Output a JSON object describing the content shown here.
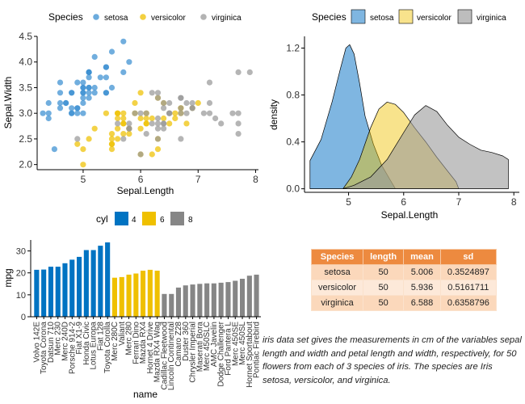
{
  "colors": {
    "setosa": "#3a8fd1",
    "versicolor": "#efc000",
    "virginica": "#999999",
    "cyl4": "#0073c2",
    "cyl6": "#efc000",
    "cyl8": "#868686",
    "table_header": "#ed8a3f"
  },
  "chart_data": [
    {
      "type": "scatter",
      "xlabel": "Sepal.Length",
      "ylabel": "Sepal.Width",
      "xlim": [
        4.2,
        8.05
      ],
      "ylim": [
        1.9,
        4.5
      ],
      "xticks": [
        5,
        6,
        7,
        8
      ],
      "yticks": [
        2.0,
        2.5,
        3.0,
        3.5,
        4.0,
        4.5
      ],
      "legend_title": "Species",
      "legend_position": "top",
      "series": [
        {
          "name": "setosa",
          "color": "#3a8fd1",
          "points": [
            [
              5.1,
              3.5
            ],
            [
              4.9,
              3.0
            ],
            [
              4.7,
              3.2
            ],
            [
              4.6,
              3.1
            ],
            [
              5.0,
              3.6
            ],
            [
              5.4,
              3.9
            ],
            [
              4.6,
              3.4
            ],
            [
              5.0,
              3.4
            ],
            [
              4.4,
              2.9
            ],
            [
              4.9,
              3.1
            ],
            [
              5.4,
              3.7
            ],
            [
              4.8,
              3.4
            ],
            [
              4.8,
              3.0
            ],
            [
              4.3,
              3.0
            ],
            [
              5.8,
              4.0
            ],
            [
              5.7,
              4.4
            ],
            [
              5.4,
              3.9
            ],
            [
              5.1,
              3.5
            ],
            [
              5.7,
              3.8
            ],
            [
              5.1,
              3.8
            ],
            [
              5.4,
              3.4
            ],
            [
              5.1,
              3.7
            ],
            [
              4.6,
              3.6
            ],
            [
              5.1,
              3.3
            ],
            [
              4.8,
              3.4
            ],
            [
              5.0,
              3.0
            ],
            [
              5.0,
              3.4
            ],
            [
              5.2,
              3.5
            ],
            [
              5.2,
              3.4
            ],
            [
              4.7,
              3.2
            ],
            [
              4.8,
              3.1
            ],
            [
              5.4,
              3.4
            ],
            [
              5.2,
              4.1
            ],
            [
              5.5,
              4.2
            ],
            [
              4.9,
              3.1
            ],
            [
              5.0,
              3.2
            ],
            [
              5.5,
              3.5
            ],
            [
              4.9,
              3.6
            ],
            [
              4.4,
              3.0
            ],
            [
              5.1,
              3.4
            ],
            [
              5.0,
              3.5
            ],
            [
              4.5,
              2.3
            ],
            [
              4.4,
              3.2
            ],
            [
              5.0,
              3.5
            ],
            [
              5.1,
              3.8
            ],
            [
              4.8,
              3.0
            ],
            [
              5.1,
              3.8
            ],
            [
              4.6,
              3.2
            ],
            [
              5.3,
              3.7
            ],
            [
              5.0,
              3.3
            ]
          ]
        },
        {
          "name": "versicolor",
          "color": "#efc000",
          "points": [
            [
              7.0,
              3.2
            ],
            [
              6.4,
              3.2
            ],
            [
              6.9,
              3.1
            ],
            [
              5.5,
              2.3
            ],
            [
              6.5,
              2.8
            ],
            [
              5.7,
              2.8
            ],
            [
              6.3,
              3.3
            ],
            [
              4.9,
              2.4
            ],
            [
              6.6,
              2.9
            ],
            [
              5.2,
              2.7
            ],
            [
              5.0,
              2.0
            ],
            [
              5.9,
              3.0
            ],
            [
              6.0,
              2.2
            ],
            [
              6.1,
              2.9
            ],
            [
              5.6,
              2.9
            ],
            [
              6.7,
              3.1
            ],
            [
              5.6,
              3.0
            ],
            [
              5.8,
              2.7
            ],
            [
              6.2,
              2.2
            ],
            [
              5.6,
              2.5
            ],
            [
              5.9,
              3.2
            ],
            [
              6.1,
              2.8
            ],
            [
              6.3,
              2.5
            ],
            [
              6.1,
              2.8
            ],
            [
              6.4,
              2.9
            ],
            [
              6.6,
              3.0
            ],
            [
              6.8,
              2.8
            ],
            [
              6.7,
              3.0
            ],
            [
              6.0,
              2.9
            ],
            [
              5.7,
              2.6
            ],
            [
              5.5,
              2.4
            ],
            [
              5.5,
              2.4
            ],
            [
              5.8,
              2.7
            ],
            [
              6.0,
              2.7
            ],
            [
              5.4,
              3.0
            ],
            [
              6.0,
              3.4
            ],
            [
              6.7,
              3.1
            ],
            [
              6.3,
              2.3
            ],
            [
              5.6,
              3.0
            ],
            [
              5.5,
              2.5
            ],
            [
              5.5,
              2.6
            ],
            [
              6.1,
              3.0
            ],
            [
              5.8,
              2.6
            ],
            [
              5.0,
              2.3
            ],
            [
              5.6,
              2.7
            ],
            [
              5.7,
              3.0
            ],
            [
              5.7,
              2.9
            ],
            [
              6.2,
              2.9
            ],
            [
              5.1,
              2.5
            ],
            [
              5.7,
              2.8
            ]
          ]
        },
        {
          "name": "virginica",
          "color": "#999999",
          "points": [
            [
              6.3,
              3.3
            ],
            [
              5.8,
              2.7
            ],
            [
              7.1,
              3.0
            ],
            [
              6.3,
              2.9
            ],
            [
              6.5,
              3.0
            ],
            [
              7.6,
              3.0
            ],
            [
              4.9,
              2.5
            ],
            [
              7.3,
              2.9
            ],
            [
              6.7,
              2.5
            ],
            [
              7.2,
              3.6
            ],
            [
              6.5,
              3.2
            ],
            [
              6.4,
              2.7
            ],
            [
              6.8,
              3.0
            ],
            [
              5.7,
              2.5
            ],
            [
              5.8,
              2.8
            ],
            [
              6.4,
              3.2
            ],
            [
              6.5,
              3.0
            ],
            [
              7.7,
              3.8
            ],
            [
              7.7,
              2.6
            ],
            [
              6.0,
              2.2
            ],
            [
              6.9,
              3.2
            ],
            [
              5.6,
              2.8
            ],
            [
              7.7,
              2.8
            ],
            [
              6.3,
              2.7
            ],
            [
              6.7,
              3.3
            ],
            [
              7.2,
              3.2
            ],
            [
              6.2,
              2.8
            ],
            [
              6.1,
              3.0
            ],
            [
              6.4,
              2.8
            ],
            [
              7.2,
              3.0
            ],
            [
              7.4,
              2.8
            ],
            [
              7.9,
              3.8
            ],
            [
              6.4,
              2.8
            ],
            [
              6.3,
              2.8
            ],
            [
              6.1,
              2.6
            ],
            [
              7.7,
              3.0
            ],
            [
              6.3,
              3.4
            ],
            [
              6.4,
              3.1
            ],
            [
              6.0,
              3.0
            ],
            [
              6.9,
              3.1
            ],
            [
              6.7,
              3.1
            ],
            [
              6.9,
              3.1
            ],
            [
              5.8,
              2.7
            ],
            [
              6.8,
              3.2
            ],
            [
              6.7,
              3.3
            ],
            [
              6.7,
              3.0
            ],
            [
              6.3,
              2.5
            ],
            [
              6.5,
              3.0
            ],
            [
              6.2,
              3.4
            ],
            [
              5.9,
              3.0
            ]
          ]
        }
      ]
    },
    {
      "type": "area",
      "xlabel": "Sepal.Length",
      "ylabel": "density",
      "xlim": [
        4.2,
        8.1
      ],
      "ylim": [
        -0.03,
        1.3
      ],
      "xticks": [
        5,
        6,
        7,
        8
      ],
      "yticks": [
        0.0,
        0.4,
        0.8,
        1.2
      ],
      "yticklabels": [
        "0.0",
        "0.4",
        "0.8",
        "1.2"
      ],
      "legend_title": "Species",
      "legend_position": "top",
      "series": [
        {
          "name": "setosa",
          "color": "#3a8fd1",
          "points": [
            [
              4.3,
              0.24
            ],
            [
              4.5,
              0.42
            ],
            [
              4.7,
              0.74
            ],
            [
              4.85,
              1.02
            ],
            [
              4.95,
              1.2
            ],
            [
              5.02,
              1.23
            ],
            [
              5.1,
              1.15
            ],
            [
              5.2,
              0.9
            ],
            [
              5.3,
              0.62
            ],
            [
              5.45,
              0.38
            ],
            [
              5.6,
              0.2
            ],
            [
              5.75,
              0.08
            ],
            [
              5.85,
              0.0
            ]
          ]
        },
        {
          "name": "versicolor",
          "color": "#efc000",
          "points": [
            [
              4.9,
              0.0
            ],
            [
              5.05,
              0.1
            ],
            [
              5.2,
              0.25
            ],
            [
              5.4,
              0.52
            ],
            [
              5.55,
              0.68
            ],
            [
              5.7,
              0.74
            ],
            [
              5.85,
              0.72
            ],
            [
              6.0,
              0.65
            ],
            [
              6.2,
              0.52
            ],
            [
              6.4,
              0.4
            ],
            [
              6.6,
              0.27
            ],
            [
              6.8,
              0.15
            ],
            [
              6.95,
              0.06
            ],
            [
              7.0,
              0.0
            ]
          ]
        },
        {
          "name": "virginica",
          "color": "#999999",
          "points": [
            [
              4.9,
              0.0
            ],
            [
              5.1,
              0.03
            ],
            [
              5.4,
              0.1
            ],
            [
              5.7,
              0.25
            ],
            [
              6.0,
              0.48
            ],
            [
              6.2,
              0.63
            ],
            [
              6.4,
              0.71
            ],
            [
              6.6,
              0.66
            ],
            [
              6.8,
              0.54
            ],
            [
              7.0,
              0.44
            ],
            [
              7.2,
              0.38
            ],
            [
              7.4,
              0.33
            ],
            [
              7.6,
              0.31
            ],
            [
              7.8,
              0.28
            ],
            [
              7.9,
              0.25
            ]
          ]
        }
      ]
    },
    {
      "type": "bar",
      "xlabel": "name",
      "ylabel": "mpg",
      "ylim": [
        0,
        35
      ],
      "yticks": [
        0,
        10,
        20,
        30
      ],
      "legend_title": "cyl",
      "legend_position": "top",
      "categories": [
        "Volvo 142E",
        "Toyota Corona",
        "Datsun 710",
        "Merc 230",
        "Merc 240D",
        "Porsche 914-2",
        "Fiat X1-9",
        "Honda Civic",
        "Lotus Europa",
        "Fiat 128",
        "Toyota Corolla",
        "Merc 280C",
        "Valiant",
        "Merc 280",
        "Ferrari Dino",
        "Mazda RX4",
        "Hornet 4 Drive",
        "Mazda RX4 Wag",
        "Cadillac Fleetwood",
        "Lincoln Continental",
        "Camaro Z28",
        "Duster 360",
        "Chrysler Imperial",
        "Maserati Bora",
        "Merc 450SLC",
        "AMC Javelin",
        "Dodge Challenger",
        "Ford Pantera L",
        "Merc 450SE",
        "Merc 450SL",
        "Hornet Sportabout",
        "Pontiac Firebird"
      ],
      "values": [
        21.4,
        21.5,
        22.8,
        22.8,
        24.4,
        26.0,
        27.3,
        30.4,
        30.4,
        32.4,
        33.9,
        17.8,
        18.1,
        19.2,
        19.7,
        21.0,
        21.4,
        21.0,
        10.4,
        10.4,
        13.3,
        14.3,
        14.7,
        15.0,
        15.2,
        15.2,
        15.5,
        15.8,
        16.4,
        17.3,
        18.7,
        19.2
      ],
      "groups": [
        "4",
        "4",
        "4",
        "4",
        "4",
        "4",
        "4",
        "4",
        "4",
        "4",
        "4",
        "6",
        "6",
        "6",
        "6",
        "6",
        "6",
        "6",
        "8",
        "8",
        "8",
        "8",
        "8",
        "8",
        "8",
        "8",
        "8",
        "8",
        "8",
        "8",
        "8",
        "8"
      ],
      "legend": [
        {
          "label": "4",
          "color": "#0073c2"
        },
        {
          "label": "6",
          "color": "#efc000"
        },
        {
          "label": "8",
          "color": "#868686"
        }
      ]
    },
    {
      "type": "table",
      "columns": [
        "Species",
        "length",
        "mean",
        "sd"
      ],
      "rows": [
        [
          "setosa",
          "50",
          "5.006",
          "0.3524897"
        ],
        [
          "versicolor",
          "50",
          "5.936",
          "0.5161711"
        ],
        [
          "virginica",
          "50",
          "6.588",
          "0.6358796"
        ]
      ]
    }
  ],
  "caption": "iris data set gives the measurements in cm of the variables sepal length and width and petal length and width, respectively, for 50 flowers from each of 3 species of iris. The species are Iris setosa, versicolor, and virginica."
}
